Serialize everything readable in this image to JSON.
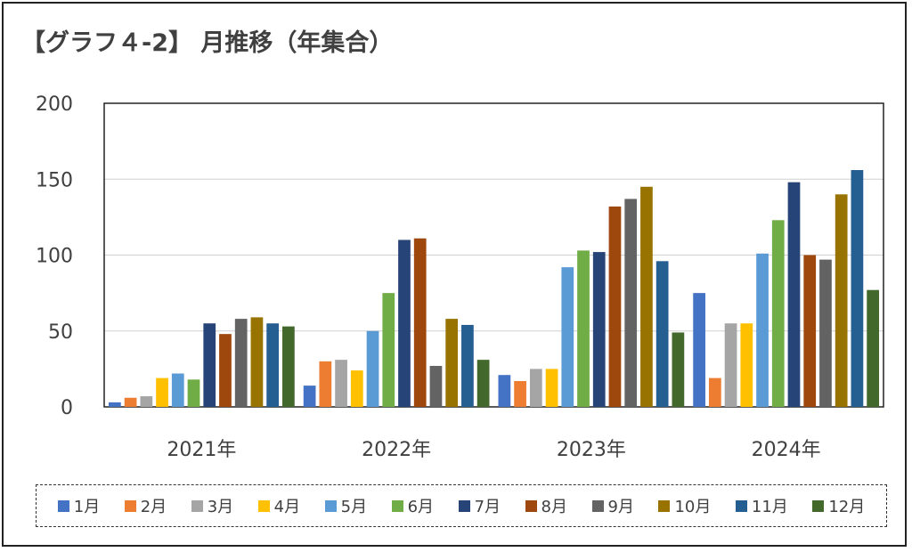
{
  "title": "【グラフ４-2】 月推移（年集合）",
  "chart_data": {
    "type": "bar",
    "categories": [
      "2021年",
      "2022年",
      "2023年",
      "2024年"
    ],
    "ylim": [
      0,
      200
    ],
    "yticks": [
      0,
      50,
      100,
      150,
      200
    ],
    "grid": true,
    "legend_position": "bottom",
    "series": [
      {
        "name": "1月",
        "color": "#4472C4",
        "values": [
          3,
          14,
          21,
          75
        ]
      },
      {
        "name": "2月",
        "color": "#ED7D31",
        "values": [
          6,
          30,
          17,
          19
        ]
      },
      {
        "name": "3月",
        "color": "#A5A5A5",
        "values": [
          7,
          31,
          25,
          55
        ]
      },
      {
        "name": "4月",
        "color": "#FFC000",
        "values": [
          19,
          24,
          25,
          55
        ]
      },
      {
        "name": "5月",
        "color": "#5B9BD5",
        "values": [
          22,
          50,
          92,
          101
        ]
      },
      {
        "name": "6月",
        "color": "#70AD47",
        "values": [
          18,
          75,
          103,
          123
        ]
      },
      {
        "name": "7月",
        "color": "#264478",
        "values": [
          55,
          110,
          102,
          148
        ]
      },
      {
        "name": "8月",
        "color": "#9E480E",
        "values": [
          48,
          111,
          132,
          100
        ]
      },
      {
        "name": "9月",
        "color": "#636363",
        "values": [
          58,
          27,
          137,
          97
        ]
      },
      {
        "name": "10月",
        "color": "#997300",
        "values": [
          59,
          58,
          145,
          140
        ]
      },
      {
        "name": "11月",
        "color": "#255E91",
        "values": [
          55,
          54,
          96,
          156
        ]
      },
      {
        "name": "12月",
        "color": "#43682B",
        "values": [
          53,
          31,
          49,
          77
        ]
      }
    ]
  }
}
